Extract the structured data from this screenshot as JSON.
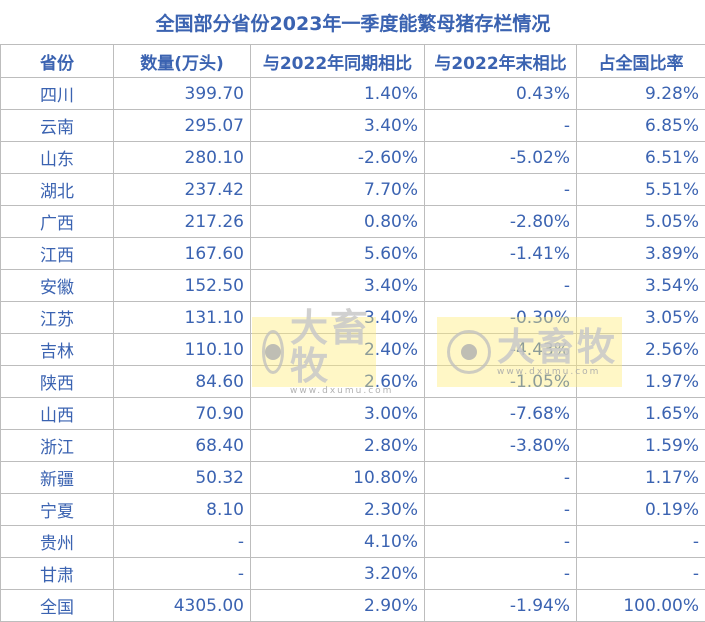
{
  "title": "全国部分省份2023年一季度能繁母猪存栏情况",
  "headers": [
    "省份",
    "数量(万头)",
    "与2022年同期相比",
    "与2022年末相比",
    "占全国比率"
  ],
  "rows": [
    [
      "四川",
      "399.70",
      "1.40%",
      "0.43%",
      "9.28%"
    ],
    [
      "云南",
      "295.07",
      "3.40%",
      "-",
      "6.85%"
    ],
    [
      "山东",
      "280.10",
      "-2.60%",
      "-5.02%",
      "6.51%"
    ],
    [
      "湖北",
      "237.42",
      "7.70%",
      "-",
      "5.51%"
    ],
    [
      "广西",
      "217.26",
      "0.80%",
      "-2.80%",
      "5.05%"
    ],
    [
      "江西",
      "167.60",
      "5.60%",
      "-1.41%",
      "3.89%"
    ],
    [
      "安徽",
      "152.50",
      "3.40%",
      "-",
      "3.54%"
    ],
    [
      "江苏",
      "131.10",
      "3.40%",
      "-0.30%",
      "3.05%"
    ],
    [
      "吉林",
      "110.10",
      "2.40%",
      "-4.43%",
      "2.56%"
    ],
    [
      "陕西",
      "84.60",
      "2.60%",
      "-1.05%",
      "1.97%"
    ],
    [
      "山西",
      "70.90",
      "3.00%",
      "-7.68%",
      "1.65%"
    ],
    [
      "浙江",
      "68.40",
      "2.80%",
      "-3.80%",
      "1.59%"
    ],
    [
      "新疆",
      "50.32",
      "10.80%",
      "-",
      "1.17%"
    ],
    [
      "宁夏",
      "8.10",
      "2.30%",
      "-",
      "0.19%"
    ],
    [
      "贵州",
      "-",
      "4.10%",
      "-",
      "-"
    ],
    [
      "甘肃",
      "-",
      "3.20%",
      "-",
      "-"
    ],
    [
      "全国",
      "4305.00",
      "2.90%",
      "-1.94%",
      "100.00%"
    ]
  ],
  "watermark": {
    "brand": "大畜牧",
    "url": "www.dxumu.com"
  },
  "colors": {
    "text": "#3b63b1",
    "border": "#bdbdbd",
    "watermark_bg": "#ffec78"
  }
}
